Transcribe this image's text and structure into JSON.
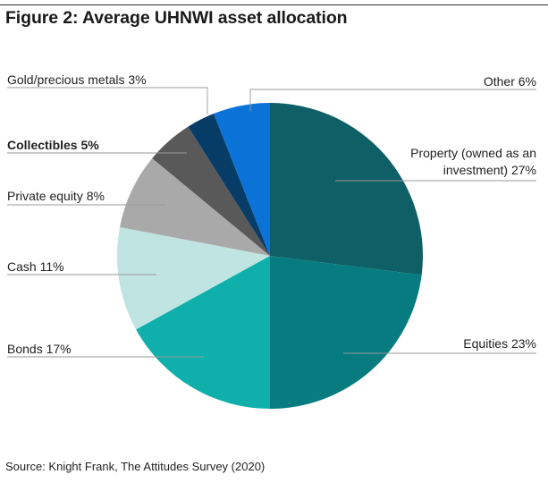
{
  "figure": {
    "title": "Figure 2: Average UHNWI asset allocation",
    "source": "Source: Knight Frank, The Attitudes Survey (2020)"
  },
  "chart_data": {
    "type": "pie",
    "title": "Figure 2: Average UHNWI asset allocation",
    "slices": [
      {
        "name": "Property (owned as an investment)",
        "value": 27,
        "color": "#0e5f66",
        "label_lines": [
          "Property (owned as an",
          "investment) 27%"
        ]
      },
      {
        "name": "Equities",
        "value": 23,
        "color": "#067b80",
        "label_lines": [
          "Equities 23%"
        ]
      },
      {
        "name": "Bonds",
        "value": 17,
        "color": "#0fb0ab",
        "label_lines": [
          "Bonds 17%"
        ]
      },
      {
        "name": "Cash",
        "value": 11,
        "color": "#bfe4e1",
        "label_lines": [
          "Cash 11%"
        ]
      },
      {
        "name": "Private equity",
        "value": 8,
        "color": "#a9a9a9",
        "label_lines": [
          "Private equity 8%"
        ]
      },
      {
        "name": "Collectibles",
        "value": 5,
        "color": "#595959",
        "label_lines": [
          "Collectibles  5%"
        ],
        "bold": true
      },
      {
        "name": "Gold/precious metals",
        "value": 3,
        "color": "#063c66",
        "label_lines": [
          "Gold/precious metals 3%"
        ]
      },
      {
        "name": "Other",
        "value": 6,
        "color": "#0b72d8",
        "label_lines": [
          "Other 6%"
        ]
      }
    ],
    "legend": "none"
  }
}
